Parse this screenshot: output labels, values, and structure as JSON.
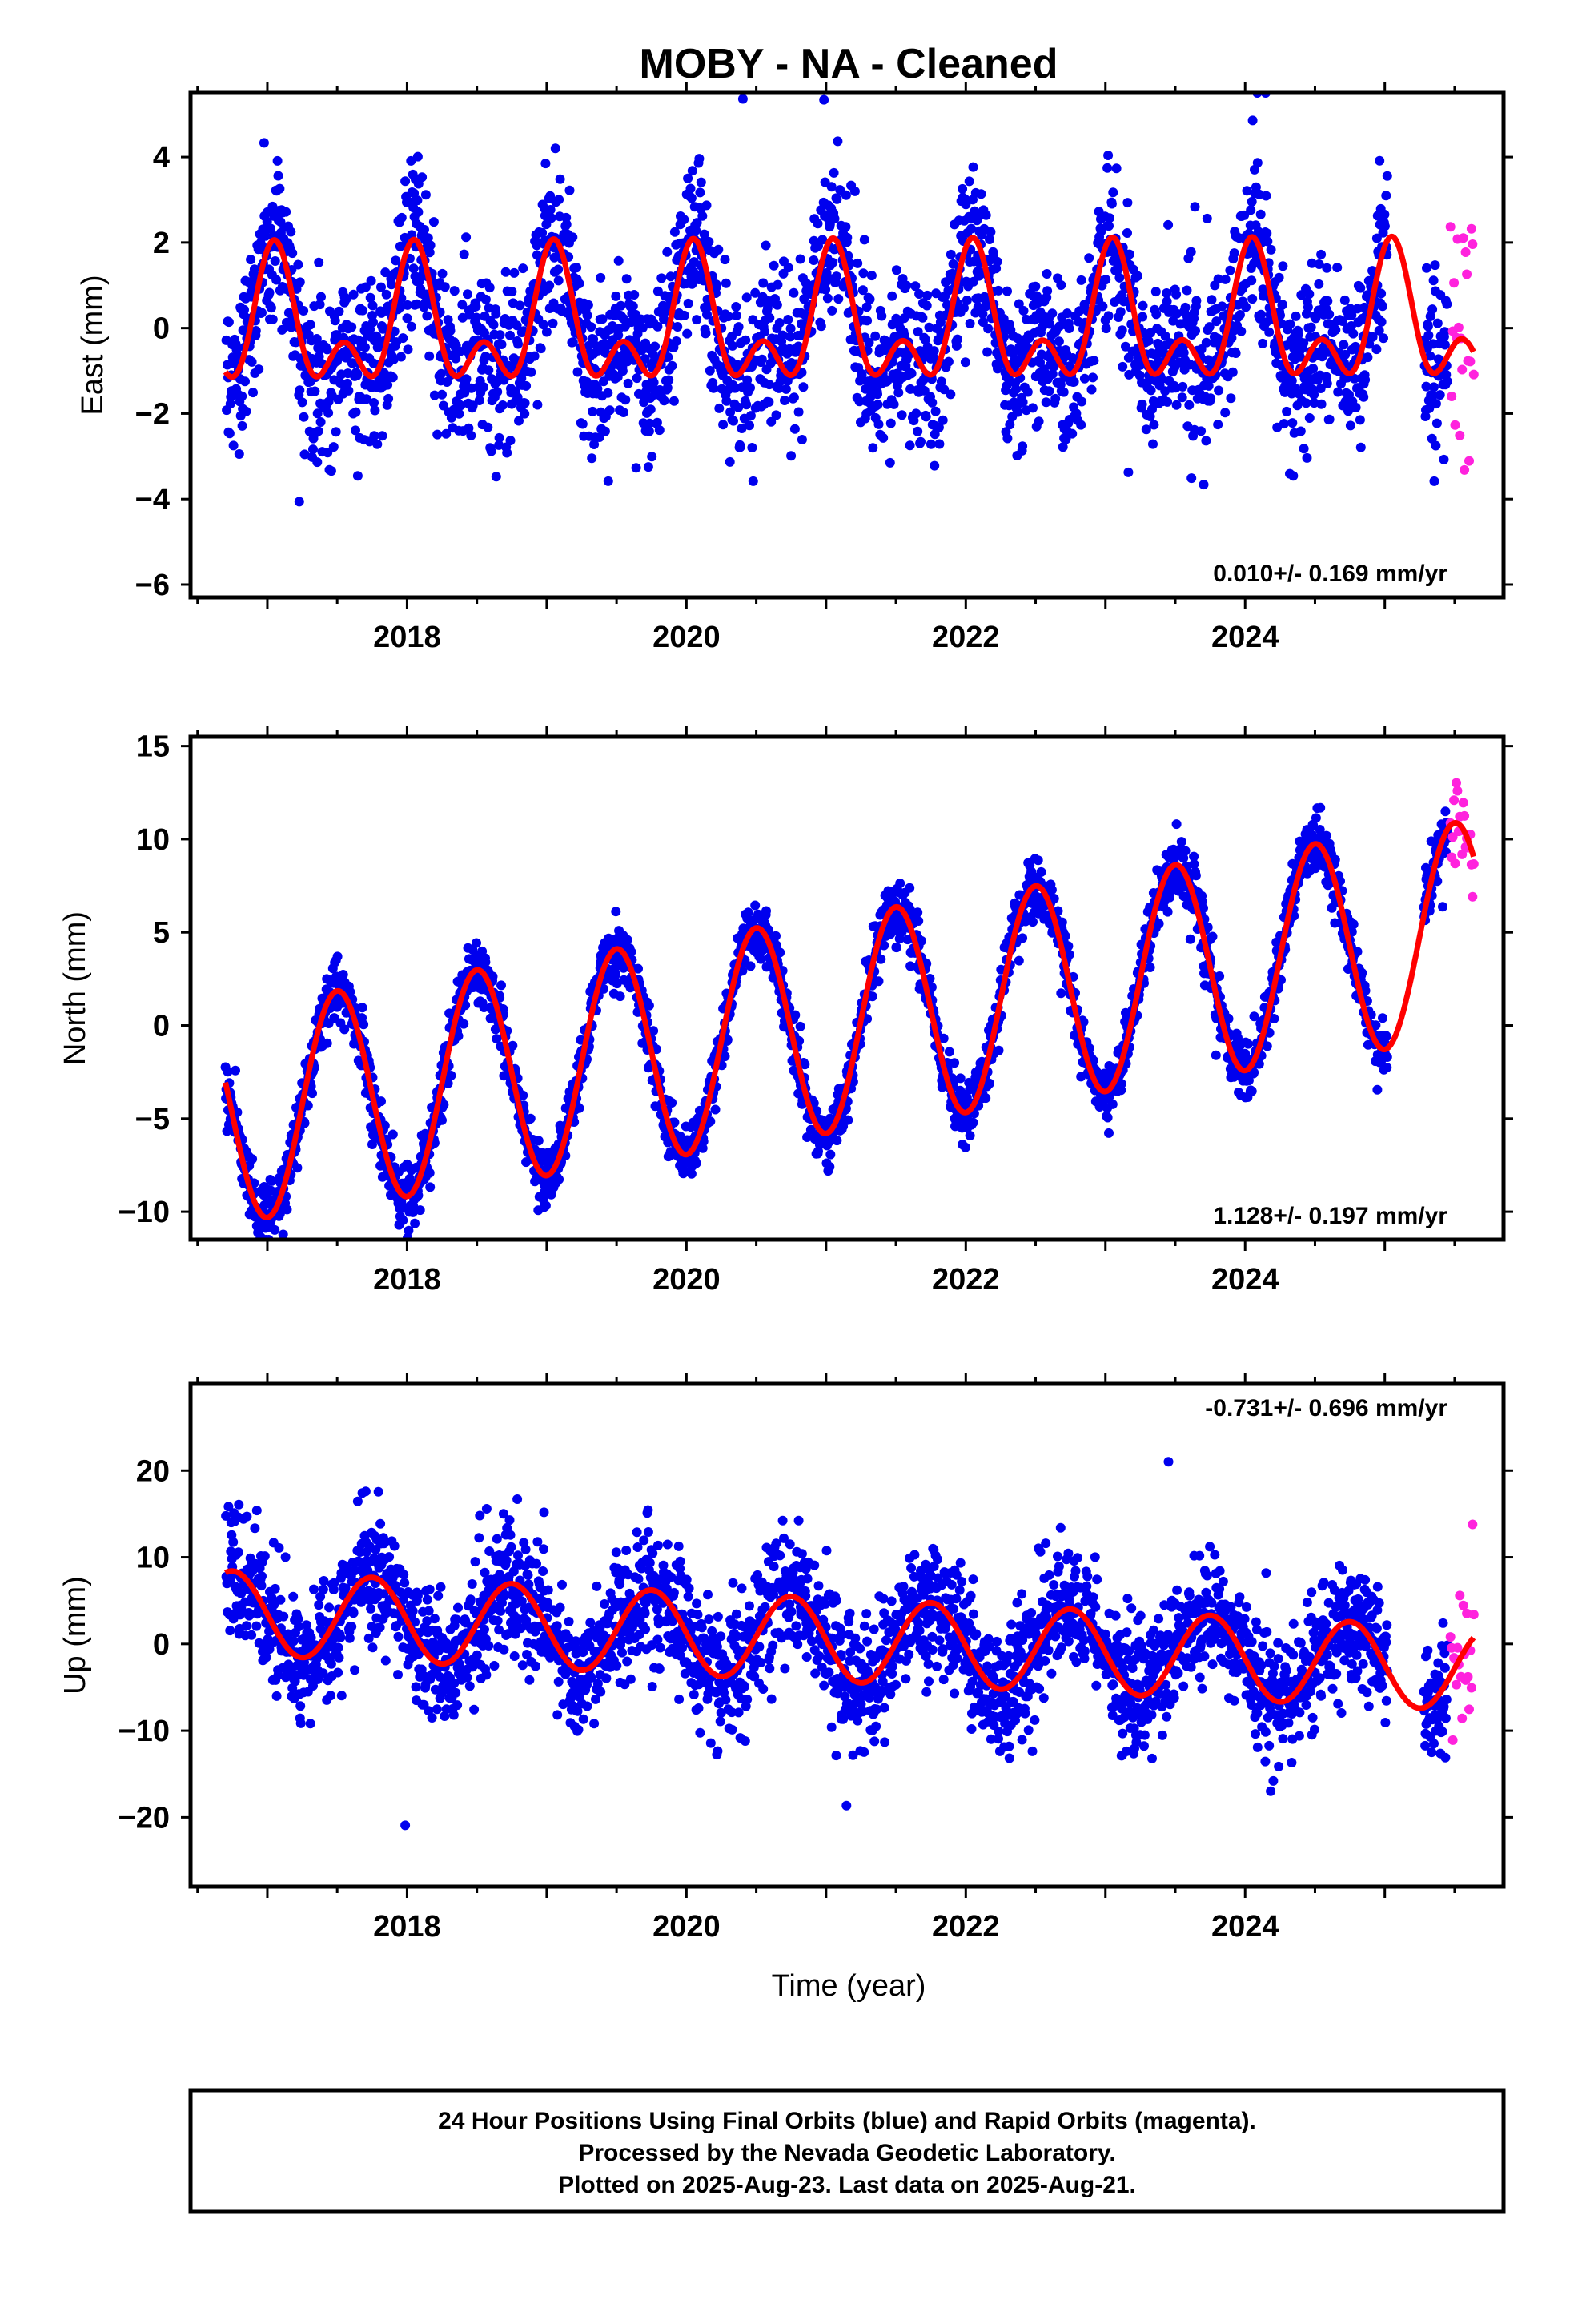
{
  "title": "MOBY  - NA - Cleaned",
  "xlabel": "Time (year)",
  "footer": {
    "lines": [
      "24 Hour Positions Using Final Orbits (blue) and Rapid Orbits (magenta).",
      "Processed by the Nevada Geodetic Laboratory.",
      "Plotted on 2025-Aug-23. Last data on 2025-Aug-21."
    ]
  },
  "colors": {
    "final_points": "#0000ee",
    "rapid_points": "#ff22dd",
    "model_line": "#ff0000",
    "axes": "#000000"
  },
  "chart_data": [
    {
      "type": "scatter",
      "component": "east",
      "ylabel": "East (mm)",
      "rate_label": "0.010+/- 0.169 mm/yr",
      "xlim": [
        2016.45,
        2025.85
      ],
      "ylim": [
        -6.3,
        5.5
      ],
      "yticks": [
        -6,
        -4,
        -2,
        0,
        2,
        4
      ],
      "xticks": [
        2018,
        2020,
        2022,
        2024
      ],
      "final_span": [
        2016.7,
        2025.45
      ],
      "rapid_span": [
        2025.47,
        2025.64
      ],
      "model": {
        "offset": 0.0,
        "rate": 0.01,
        "epoch": 2021.0,
        "annual_amp": 1.2,
        "annual_phase_peak": 2018.05,
        "semiannual_amp": 0.9,
        "semiannual_phase_peak": 2018.05
      },
      "scatter_sd": 0.95,
      "series": [
        {
          "name": "Final Orbits",
          "color": "#0000ee"
        },
        {
          "name": "Rapid Orbits",
          "color": "#ff22dd"
        }
      ]
    },
    {
      "type": "scatter",
      "component": "north",
      "ylabel": "North (mm)",
      "rate_label": "1.128+/- 0.197 mm/yr",
      "xlim": [
        2016.45,
        2025.85
      ],
      "ylim": [
        -11.5,
        15.5
      ],
      "yticks": [
        -10,
        -5,
        0,
        5,
        10,
        15
      ],
      "xticks": [
        2018,
        2020,
        2022,
        2024
      ],
      "final_span": [
        2016.7,
        2025.45
      ],
      "rapid_span": [
        2025.47,
        2025.64
      ],
      "model": {
        "offset": 0.0,
        "rate": 1.128,
        "epoch": 2021.0,
        "annual_amp": 5.8,
        "annual_phase_peak": 2017.5,
        "semiannual_amp": 0.0,
        "semiannual_phase_peak": 2017.5
      },
      "scatter_sd": 0.8,
      "series": [
        {
          "name": "Final Orbits",
          "color": "#0000ee"
        },
        {
          "name": "Rapid Orbits",
          "color": "#ff22dd"
        }
      ]
    },
    {
      "type": "scatter",
      "component": "up",
      "ylabel": "Up (mm)",
      "rate_label": "-0.731+/- 0.696 mm/yr",
      "xlim": [
        2016.45,
        2025.85
      ],
      "ylim": [
        -28,
        30
      ],
      "yticks": [
        -20,
        -10,
        0,
        10,
        20
      ],
      "xticks": [
        2018,
        2020,
        2022,
        2024
      ],
      "final_span": [
        2016.7,
        2025.45
      ],
      "rapid_span": [
        2025.47,
        2025.64
      ],
      "model": {
        "offset": 0.5,
        "rate": -0.731,
        "epoch": 2021.0,
        "annual_amp": 4.8,
        "annual_phase_peak": 2017.75,
        "semiannual_amp": 0.0,
        "semiannual_phase_peak": 2017.75
      },
      "scatter_sd": 3.6,
      "series": [
        {
          "name": "Final Orbits",
          "color": "#0000ee"
        },
        {
          "name": "Rapid Orbits",
          "color": "#ff22dd"
        }
      ]
    }
  ]
}
